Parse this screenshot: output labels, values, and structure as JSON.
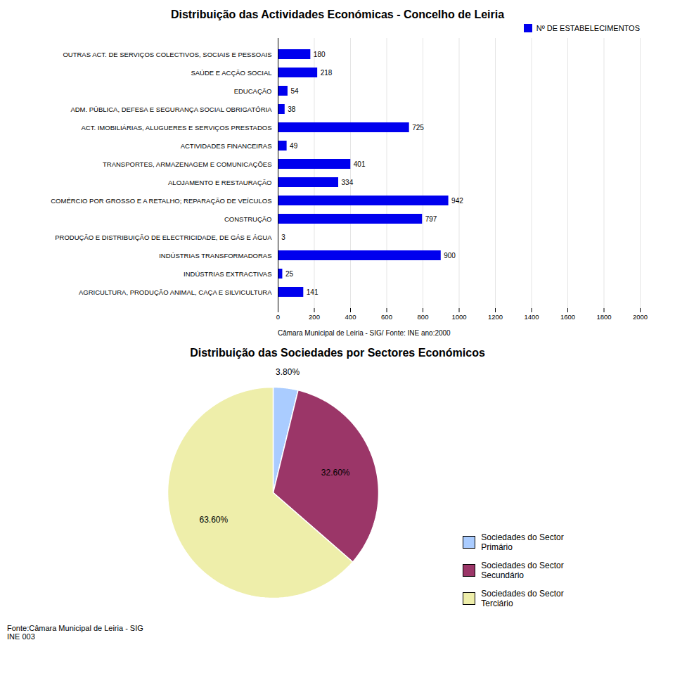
{
  "chart_data": [
    {
      "type": "bar",
      "orientation": "horizontal",
      "title": "Distribuição das Actividades Económicas - Concelho de Leiria",
      "categories": [
        "OUTRAS ACT. DE SERVIÇOS COLECTIVOS, SOCIAIS E PESSOAIS",
        "SAÚDE E ACÇÃO SOCIAL",
        "EDUCAÇÃO",
        "ADM. PÚBLICA, DEFESA E SEGURANÇA SOCIAL OBRIGATÓRIA",
        "ACT. IMOBILIÁRIAS, ALUGUERES E SERVIÇOS PRESTADOS",
        "ACTIVIDADES FINANCEIRAS",
        "TRANSPORTES, ARMAZENAGEM E COMUNICAÇÕES",
        "ALOJAMENTO E RESTAURAÇÃO",
        "COMÉRCIO POR GROSSO E A RETALHO; REPARAÇÃO DE VEÍCULOS",
        "CONSTRUÇÃO",
        "PRODUÇÃO E DISTRIBUIÇÃO DE ELECTRICIDADE, DE GÁS E ÁGUA",
        "INDÚSTRIAS TRANSFORMADORAS",
        "INDÚSTRIAS EXTRACTIVAS",
        "AGRICULTURA, PRODUÇÃO ANIMAL, CAÇA E SILVICULTURA"
      ],
      "series": [
        {
          "name": "Nº DE ESTABELECIMENTOS",
          "color": "#0000EE",
          "values": [
            180,
            218,
            54,
            38,
            725,
            49,
            401,
            334,
            942,
            797,
            3,
            900,
            25,
            141
          ]
        }
      ],
      "xlim": [
        0,
        2000
      ],
      "xticks": [
        0,
        200,
        400,
        600,
        800,
        1000,
        1200,
        1400,
        1600,
        1800,
        2000
      ],
      "grid": true,
      "legend": "upper right",
      "data_labels": true,
      "annotations": [
        "Câmara Municipal de Leiria - SIG/  Fonte: INE  ano:2000"
      ]
    },
    {
      "type": "pie",
      "title": "Distribuição das Sociedades por Sectores Económicos",
      "categories": [
        "Sociedades do Sector\nPrimário",
        "Sociedades do Sector\nSecundário",
        "Sociedades do Sector\nTerciário"
      ],
      "values": [
        3.8,
        32.6,
        63.6
      ],
      "value_labels": [
        "3.80%",
        "32.60%",
        "63.60%"
      ],
      "colors": [
        "#AACCFF",
        "#9B3668",
        "#EEEEAA"
      ],
      "data_labels": true,
      "legend": "lower right",
      "annotations": [
        "Fonte:Câmara Municipal de Leiria - SIG\nINE  003"
      ]
    }
  ]
}
